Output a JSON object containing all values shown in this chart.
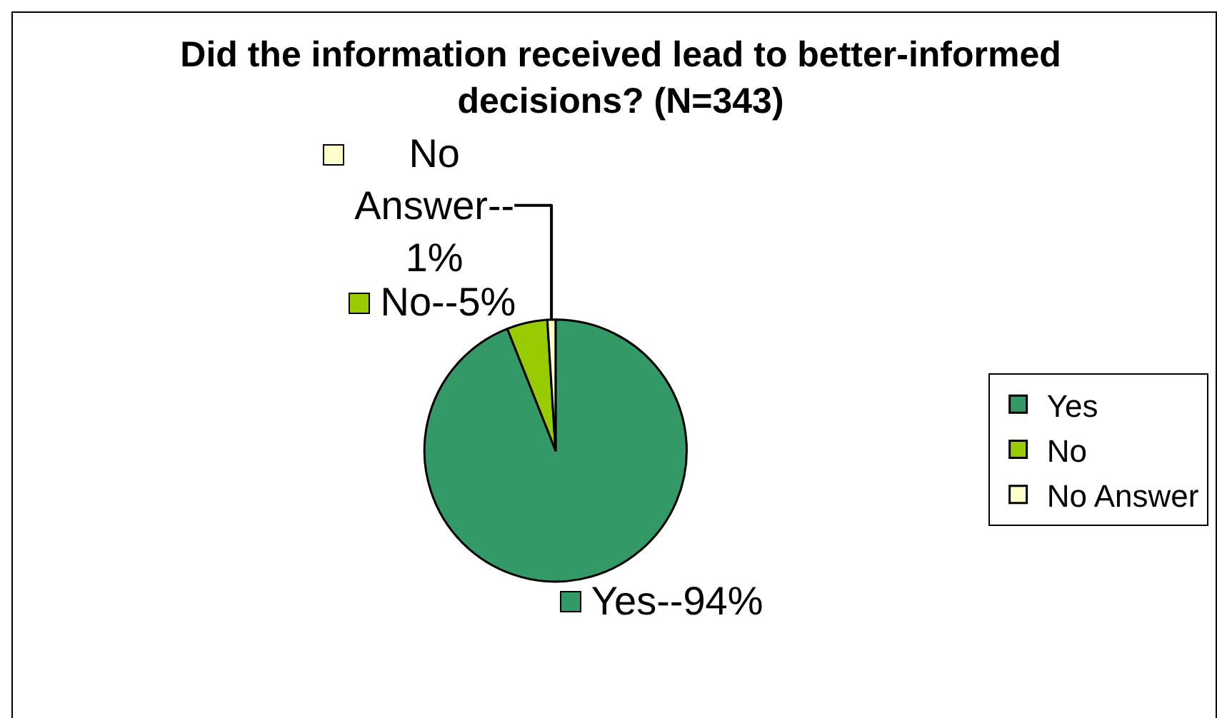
{
  "chart_data": {
    "type": "pie",
    "title": "Did the information received lead to better-informed decisions? (N=343)",
    "categories": [
      "Yes",
      "No",
      "No Answer"
    ],
    "values": [
      94,
      5,
      1
    ],
    "colors": [
      "#339966",
      "#99cc00",
      "#ffffcc"
    ],
    "value_labels": [
      "Yes--94%",
      "No--5%",
      "No Answer--1%"
    ],
    "legend": "right"
  }
}
